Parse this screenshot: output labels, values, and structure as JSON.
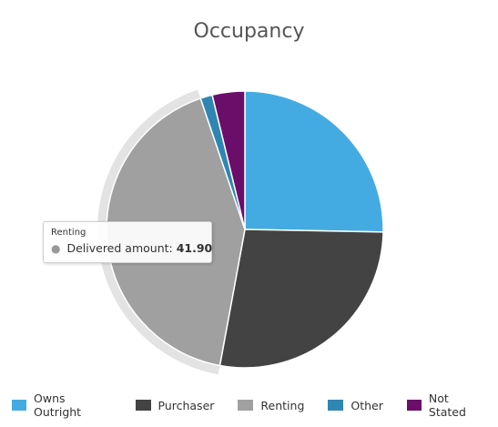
{
  "chart_data": {
    "type": "pie",
    "title": "Occupancy",
    "slices": [
      {
        "name": "Owns Outright",
        "value": 25.3,
        "color": "#44abe2"
      },
      {
        "name": "Purchaser",
        "value": 27.6,
        "color": "#434343"
      },
      {
        "name": "Renting",
        "value": 41.9,
        "color": "#a0a0a0"
      },
      {
        "name": "Other",
        "value": 1.4,
        "color": "#2f86b2"
      },
      {
        "name": "Not Stated",
        "value": 3.8,
        "color": "#6a0e6a"
      }
    ],
    "legend_position": "bottom",
    "highlighted_slice": "Renting"
  },
  "tooltip": {
    "title": "Renting",
    "label": "Delivered amount:",
    "value": "41.90"
  }
}
